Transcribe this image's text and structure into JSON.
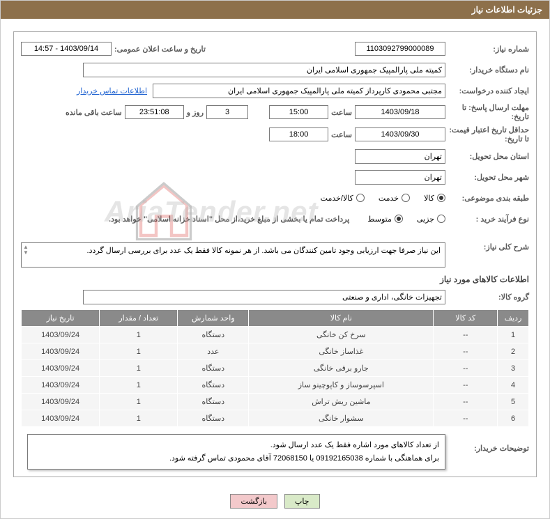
{
  "header": {
    "title": "جزئیات اطلاعات نیاز"
  },
  "fields": {
    "req_no_label": "شماره نیاز:",
    "req_no": "1103092799000089",
    "announce_label": "تاریخ و ساعت اعلان عمومی:",
    "announce_value": "1403/09/14 - 14:57",
    "buyer_org_label": "نام دستگاه خریدار:",
    "buyer_org": "کمیته ملی پارالمپیک جمهوری اسلامی ایران",
    "creator_label": "ایجاد کننده درخواست:",
    "creator": "مجتبی محمودی کارپرداز کمیته ملی پارالمپیک جمهوری اسلامی ایران",
    "contact_link": "اطلاعات تماس خریدار",
    "deadline_label": "مهلت ارسال پاسخ: تا تاریخ:",
    "deadline_date": "1403/09/18",
    "time_word": "ساعت",
    "deadline_time": "15:00",
    "remaining_days": "3",
    "days_word": "روز و",
    "remaining_hms": "23:51:08",
    "remaining_word": "ساعت باقی مانده",
    "validity_label": "حداقل تاریخ اعتبار قیمت: تا تاریخ:",
    "validity_date": "1403/09/30",
    "validity_time": "18:00",
    "province_label": "استان محل تحویل:",
    "province": "تهران",
    "city_label": "شهر محل تحویل:",
    "city": "تهران",
    "category_label": "طبقه بندی موضوعی:",
    "category_opts": [
      "کالا",
      "خدمت",
      "کالا/خدمت"
    ],
    "category_selected": 0,
    "process_label": "نوع فرآیند خرید :",
    "process_opts": [
      "جزیی",
      "متوسط"
    ],
    "process_selected": 1,
    "payment_note": "پرداخت تمام یا بخشی از مبلغ خرید،از محل \"اسناد خزانه اسلامی\" خواهد بود.",
    "summary_label": "شرح کلی نیاز:",
    "summary_text": "این نیاز صرفا جهت ارزیابی وجود تامین کنندگان می باشد. از هر نمونه کالا فقط یک عدد برای بررسی ارسال گردد.",
    "goods_info_label": "اطلاعات کالاهای مورد نیاز",
    "group_label": "گروه کالا:",
    "group_value": "تجهیزات خانگی، اداری و صنعتی",
    "buyer_notes_label": "توضیحات خریدار:",
    "buyer_notes": "از تعداد کالاهای مورد اشاره فقط یک عدد ارسال شود.\nبرای هماهنگی با شماره 09192165038 یا 72068150 آقای محمودی تماس گرفته شود."
  },
  "table": {
    "headers": [
      "ردیف",
      "کد کالا",
      "نام کالا",
      "واحد شمارش",
      "تعداد / مقدار",
      "تاریخ نیاز"
    ],
    "rows": [
      [
        "1",
        "--",
        "سرخ کن خانگی",
        "دستگاه",
        "1",
        "1403/09/24"
      ],
      [
        "2",
        "--",
        "غذاساز خانگی",
        "عدد",
        "1",
        "1403/09/24"
      ],
      [
        "3",
        "--",
        "جارو برقی خانگی",
        "دستگاه",
        "1",
        "1403/09/24"
      ],
      [
        "4",
        "--",
        "اسپرسوساز و کاپوچینو ساز",
        "دستگاه",
        "1",
        "1403/09/24"
      ],
      [
        "5",
        "--",
        "ماشین ریش تراش",
        "دستگاه",
        "1",
        "1403/09/24"
      ],
      [
        "6",
        "--",
        "سشوار خانگی",
        "دستگاه",
        "1",
        "1403/09/24"
      ]
    ]
  },
  "buttons": {
    "print": "چاپ",
    "back": "بازگشت"
  },
  "watermark": {
    "text": "AriaTender.net",
    "logo_color1": "#d84340",
    "logo_color2": "#555555"
  },
  "colors": {
    "header_bg": "#8d704b",
    "table_header_bg": "#8a8a8a",
    "table_row_bg": "#f5f5f5",
    "print_btn": "#d9eac8",
    "back_btn": "#f3c9cb",
    "link": "#1a5fd0"
  }
}
